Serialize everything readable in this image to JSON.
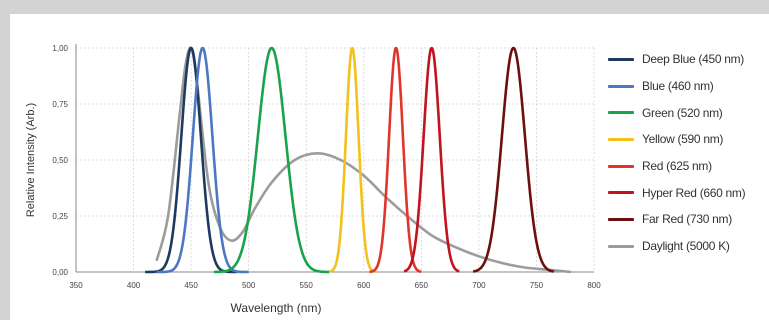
{
  "chart_data": {
    "type": "line",
    "title": "",
    "xlabel": "Wavelength (nm)",
    "ylabel": "Relative Intensity (Arb.)",
    "xlim": [
      350,
      800
    ],
    "ylim": [
      0,
      1
    ],
    "x_ticks": [
      "350",
      "400",
      "450",
      "500",
      "550",
      "600",
      "650",
      "700",
      "750",
      "800"
    ],
    "y_ticks": [
      "0,00",
      "0,25",
      "0,50",
      "0,75",
      "1,00"
    ],
    "grid": true,
    "legend_position": "right",
    "series": [
      {
        "name": "Deep Blue (450 nm)",
        "color": "#1f3a5f",
        "peak": 450,
        "width": 8.5,
        "x": [
          410,
          420,
          430,
          440,
          445,
          450,
          455,
          460,
          470,
          480,
          490
        ],
        "y": [
          0.01,
          0.05,
          0.2,
          0.55,
          0.85,
          1.0,
          0.85,
          0.55,
          0.15,
          0.04,
          0.01
        ]
      },
      {
        "name": "Blue (460 nm)",
        "color": "#4a78c2",
        "peak": 460,
        "width": 8.5,
        "x": [
          420,
          430,
          440,
          450,
          455,
          460,
          465,
          470,
          480,
          490,
          500
        ],
        "y": [
          0.01,
          0.05,
          0.2,
          0.55,
          0.85,
          1.0,
          0.85,
          0.55,
          0.15,
          0.04,
          0.01
        ]
      },
      {
        "name": "Green (520 nm)",
        "color": "#19a34a",
        "peak": 520,
        "width": 12,
        "x": [
          470,
          485,
          500,
          510,
          520,
          530,
          540,
          555,
          570
        ],
        "y": [
          0.02,
          0.08,
          0.35,
          0.75,
          1.0,
          0.75,
          0.35,
          0.08,
          0.02
        ]
      },
      {
        "name": "Yellow (590 nm)",
        "color": "#f2c21b",
        "peak": 590,
        "width": 5.5,
        "x": [
          570,
          578,
          584,
          590,
          596,
          602,
          610
        ],
        "y": [
          0.01,
          0.1,
          0.55,
          1.0,
          0.55,
          0.1,
          0.01
        ]
      },
      {
        "name": "Red (625 nm)",
        "color": "#e0352b",
        "peak": 628,
        "width": 6,
        "x": [
          605,
          615,
          622,
          628,
          634,
          641,
          650
        ],
        "y": [
          0.01,
          0.1,
          0.55,
          1.0,
          0.55,
          0.1,
          0.01
        ]
      },
      {
        "name": "Hyper Red (660 nm)",
        "color": "#c0141e",
        "peak": 659,
        "width": 7,
        "x": [
          635,
          645,
          652,
          659,
          666,
          673,
          683
        ],
        "y": [
          0.01,
          0.1,
          0.55,
          1.0,
          0.55,
          0.1,
          0.01
        ]
      },
      {
        "name": "Far Red (730 nm)",
        "color": "#6e0f0f",
        "peak": 730,
        "width": 10,
        "x": [
          695,
          710,
          720,
          730,
          740,
          750,
          765
        ],
        "y": [
          0.01,
          0.12,
          0.6,
          1.0,
          0.6,
          0.12,
          0.01
        ]
      },
      {
        "name": "Daylight (5000 K)",
        "color": "#9c9c9c",
        "x": [
          420,
          430,
          440,
          445,
          450,
          455,
          465,
          475,
          485,
          495,
          505,
          520,
          540,
          560,
          580,
          600,
          620,
          640,
          660,
          680,
          700,
          720,
          740,
          760,
          780
        ],
        "y": [
          0.05,
          0.25,
          0.7,
          0.92,
          1.0,
          0.85,
          0.4,
          0.2,
          0.14,
          0.18,
          0.28,
          0.4,
          0.5,
          0.53,
          0.5,
          0.43,
          0.33,
          0.24,
          0.16,
          0.11,
          0.07,
          0.04,
          0.02,
          0.01,
          0.0
        ]
      }
    ]
  }
}
